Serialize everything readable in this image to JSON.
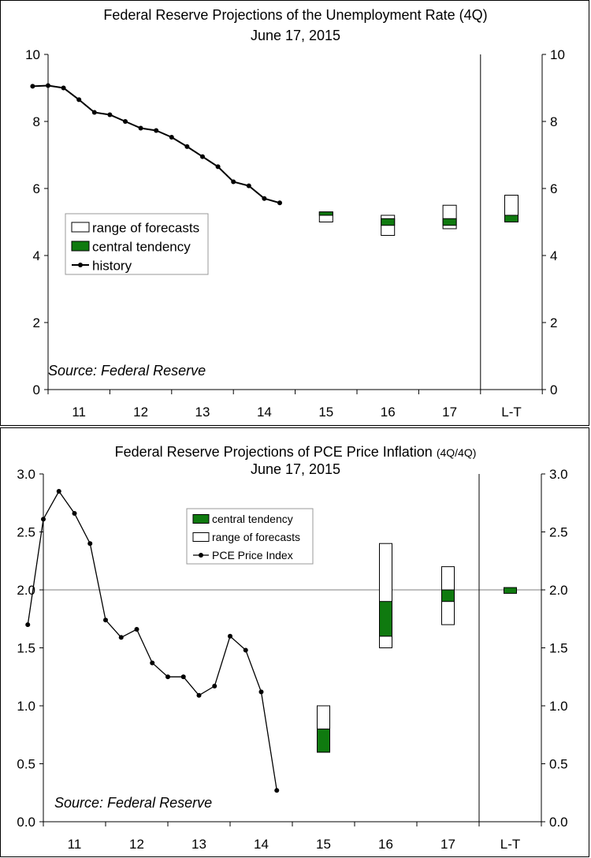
{
  "chart_data": [
    {
      "type": "line",
      "title": "Federal Reserve Projections of the Unemployment Rate",
      "title_suffix": "(4Q)",
      "subtitle": "June 17, 2015",
      "source": "Source: Federal Reserve",
      "ylim": [
        0,
        10
      ],
      "yticks": [
        "0",
        "2",
        "4",
        "6",
        "8",
        "10"
      ],
      "categories": [
        "11",
        "12",
        "13",
        "14",
        "15",
        "16",
        "17",
        "L-T"
      ],
      "legend": {
        "placement": "middle-left",
        "entries": [
          "range of forecasts",
          "central tendency",
          "history"
        ]
      },
      "history": {
        "name": "history",
        "x": [
          10.25,
          10.5,
          10.75,
          11.0,
          11.25,
          11.5,
          11.75,
          12.0,
          12.25,
          12.5,
          12.75,
          13.0,
          13.25,
          13.5,
          13.75,
          14.0,
          14.25
        ],
        "y": [
          9.05,
          9.07,
          9.0,
          8.65,
          8.27,
          8.2,
          8.0,
          7.8,
          7.73,
          7.53,
          7.25,
          6.95,
          6.65,
          6.2,
          6.08,
          5.7,
          5.57
        ]
      },
      "projections": [
        {
          "category": "15",
          "range": [
            5.0,
            5.3
          ],
          "central": [
            5.2,
            5.3
          ]
        },
        {
          "category": "16",
          "range": [
            4.6,
            5.2
          ],
          "central": [
            4.9,
            5.1
          ]
        },
        {
          "category": "17",
          "range": [
            4.8,
            5.5
          ],
          "central": [
            4.9,
            5.1
          ]
        },
        {
          "category": "L-T",
          "range": [
            5.0,
            5.8
          ],
          "central": [
            5.0,
            5.2
          ]
        }
      ],
      "colors": {
        "central": "#0f7a0f",
        "line": "#000000"
      }
    },
    {
      "type": "line",
      "title": "Federal Reserve Projections of PCE Price Inflation",
      "title_suffix": "(4Q/4Q)",
      "subtitle": "June 17, 2015",
      "source": "Source: Federal Reserve",
      "ylim": [
        0,
        3
      ],
      "yticks": [
        "0.0",
        "0.5",
        "1.0",
        "1.5",
        "2.0",
        "2.5",
        "3.0"
      ],
      "categories": [
        "11",
        "12",
        "13",
        "14",
        "15",
        "16",
        "17",
        "L-T"
      ],
      "reference_line": 2.0,
      "legend": {
        "placement": "top-center",
        "entries": [
          "central tendency",
          "range of forecasts",
          "PCE Price Index"
        ]
      },
      "history": {
        "name": "PCE Price Index",
        "x": [
          10.25,
          10.5,
          10.75,
          11.0,
          11.25,
          11.5,
          11.75,
          12.0,
          12.25,
          12.5,
          12.75,
          13.0,
          13.25,
          13.5,
          13.75,
          14.0,
          14.25
        ],
        "y": [
          1.7,
          2.61,
          2.85,
          2.66,
          2.4,
          1.74,
          1.59,
          1.66,
          1.37,
          1.25,
          1.25,
          1.09,
          1.17,
          1.6,
          1.48,
          1.12,
          0.27
        ]
      },
      "projections": [
        {
          "category": "15",
          "range": [
            0.6,
            1.0
          ],
          "central": [
            0.6,
            0.8
          ]
        },
        {
          "category": "16",
          "range": [
            1.5,
            2.4
          ],
          "central": [
            1.6,
            1.9
          ]
        },
        {
          "category": "17",
          "range": [
            1.7,
            2.2
          ],
          "central": [
            1.9,
            2.0
          ]
        },
        {
          "category": "L-T",
          "range": [
            2.0,
            2.0
          ],
          "central": [
            1.97,
            2.02
          ]
        }
      ],
      "colors": {
        "central": "#0f7a0f",
        "line": "#000000",
        "reference": "#999999"
      }
    }
  ]
}
